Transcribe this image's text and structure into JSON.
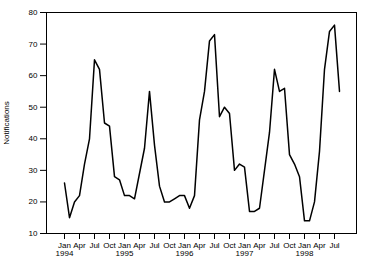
{
  "chart_data": {
    "type": "line",
    "categories": [
      "Jan\n1994",
      null,
      null,
      "Apr",
      null,
      null,
      "Jul",
      null,
      null,
      "Oct",
      null,
      null,
      "Jan\n1995",
      null,
      null,
      "Apr",
      null,
      null,
      "Jul",
      null,
      null,
      "Oct",
      null,
      null,
      "Jan\n1996",
      null,
      null,
      "Apr",
      null,
      null,
      "Jul",
      null,
      null,
      "Oct",
      null,
      null,
      "Jan\n1997",
      null,
      null,
      "Apr",
      null,
      null,
      "Jul",
      null,
      null,
      "Oct",
      null,
      null,
      "Jan\n1998",
      null,
      null,
      "Apr",
      null,
      null,
      "Jul",
      null
    ],
    "values": [
      26,
      15,
      20,
      22,
      32,
      40,
      65,
      62,
      45,
      44,
      28,
      27,
      22,
      22,
      21,
      29,
      37,
      55,
      38,
      25,
      20,
      20,
      21,
      22,
      22,
      18,
      22,
      46,
      55,
      71,
      73,
      47,
      50,
      48,
      30,
      32,
      31,
      17,
      17,
      18,
      30,
      42,
      62,
      55,
      56,
      35,
      32,
      28,
      14,
      14,
      20,
      36,
      62,
      74,
      76,
      55
    ],
    "ylabel": "Notifications",
    "ylim": [
      10,
      80
    ],
    "yticks": [
      10,
      20,
      30,
      40,
      50,
      60,
      70,
      80
    ],
    "color": "#000000"
  }
}
